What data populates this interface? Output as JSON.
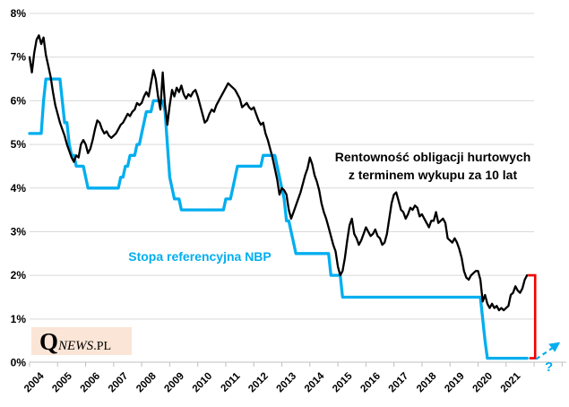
{
  "chart_data": {
    "type": "line",
    "title": "",
    "x_unit": "month",
    "x_start": "2004-01",
    "x_end": "2021-10",
    "x_tick_labels": [
      "2004",
      "2005",
      "2006",
      "2007",
      "2008",
      "2009",
      "2010",
      "2011",
      "2012",
      "2013",
      "2014",
      "2015",
      "2016",
      "2017",
      "2018",
      "2019",
      "2020",
      "2021"
    ],
    "y_tick_labels": [
      "8%",
      "7%",
      "6%",
      "5%",
      "4%",
      "3%",
      "2%",
      "1%",
      "0%"
    ],
    "ylim": [
      0,
      8
    ],
    "xlim_years": [
      2004,
      2022
    ],
    "grid": "horizontal",
    "legend_position": "none (inline annotations)",
    "series": [
      {
        "name": "Rentowność obligacji hurtowych z terminem wykupu za 10 lat",
        "color": "#000000",
        "values": [
          7.0,
          6.65,
          7.1,
          7.4,
          7.5,
          7.3,
          7.45,
          7.05,
          6.8,
          6.55,
          6.2,
          5.9,
          5.7,
          5.5,
          5.35,
          5.2,
          5.0,
          4.85,
          4.7,
          4.6,
          4.75,
          4.7,
          5.0,
          5.1,
          5.0,
          4.8,
          4.9,
          5.1,
          5.35,
          5.55,
          5.5,
          5.35,
          5.25,
          5.3,
          5.2,
          5.15,
          5.2,
          5.25,
          5.35,
          5.45,
          5.5,
          5.6,
          5.7,
          5.65,
          5.75,
          5.8,
          5.95,
          5.9,
          5.95,
          6.1,
          6.2,
          6.1,
          6.4,
          6.7,
          6.5,
          6.1,
          5.8,
          6.65,
          5.9,
          5.45,
          5.9,
          6.25,
          6.1,
          6.3,
          6.2,
          6.35,
          6.15,
          6.05,
          6.15,
          6.1,
          6.2,
          6.25,
          6.1,
          5.9,
          5.7,
          5.5,
          5.55,
          5.7,
          5.8,
          5.75,
          5.9,
          6.0,
          6.1,
          6.2,
          6.3,
          6.4,
          6.35,
          6.3,
          6.25,
          6.15,
          6.05,
          5.85,
          5.9,
          5.95,
          5.85,
          5.8,
          5.85,
          5.7,
          5.55,
          5.45,
          5.5,
          5.25,
          5.1,
          4.9,
          4.7,
          4.45,
          4.2,
          3.85,
          4.0,
          3.95,
          3.85,
          3.5,
          3.3,
          3.45,
          3.6,
          3.75,
          3.9,
          4.1,
          4.3,
          4.45,
          4.7,
          4.55,
          4.3,
          4.15,
          3.95,
          3.65,
          3.45,
          3.3,
          3.1,
          2.9,
          2.7,
          2.55,
          2.2,
          2.0,
          2.1,
          2.4,
          2.8,
          3.15,
          3.3,
          2.95,
          2.85,
          2.7,
          2.8,
          2.95,
          3.1,
          3.0,
          2.9,
          2.95,
          3.05,
          2.9,
          2.85,
          2.7,
          2.75,
          2.95,
          3.3,
          3.65,
          3.85,
          3.9,
          3.7,
          3.5,
          3.45,
          3.3,
          3.4,
          3.55,
          3.5,
          3.6,
          3.55,
          3.35,
          3.4,
          3.3,
          3.2,
          3.1,
          3.25,
          3.25,
          3.45,
          3.2,
          3.25,
          3.3,
          3.2,
          2.85,
          2.8,
          2.75,
          2.85,
          2.75,
          2.6,
          2.4,
          2.1,
          1.95,
          1.9,
          2.0,
          2.05,
          2.1,
          2.1,
          1.9,
          1.4,
          1.55,
          1.35,
          1.25,
          1.35,
          1.25,
          1.3,
          1.2,
          1.25,
          1.2,
          1.25,
          1.3,
          1.55,
          1.6,
          1.75,
          1.65,
          1.6,
          1.7,
          1.9,
          2.0
        ]
      },
      {
        "name": "Stopa referencyjna NBP",
        "color": "#00AEEF",
        "values": [
          5.25,
          5.25,
          5.25,
          5.25,
          5.25,
          5.25,
          6.0,
          6.5,
          6.5,
          6.5,
          6.5,
          6.5,
          6.5,
          6.5,
          6.0,
          5.5,
          5.5,
          5.0,
          4.75,
          4.75,
          4.5,
          4.5,
          4.5,
          4.5,
          4.25,
          4.0,
          4.0,
          4.0,
          4.0,
          4.0,
          4.0,
          4.0,
          4.0,
          4.0,
          4.0,
          4.0,
          4.0,
          4.0,
          4.0,
          4.25,
          4.25,
          4.5,
          4.5,
          4.75,
          4.75,
          4.75,
          5.0,
          5.0,
          5.25,
          5.5,
          5.75,
          5.75,
          5.75,
          6.0,
          6.0,
          6.0,
          6.0,
          6.0,
          5.75,
          5.0,
          4.25,
          4.0,
          3.75,
          3.75,
          3.75,
          3.5,
          3.5,
          3.5,
          3.5,
          3.5,
          3.5,
          3.5,
          3.5,
          3.5,
          3.5,
          3.5,
          3.5,
          3.5,
          3.5,
          3.5,
          3.5,
          3.5,
          3.5,
          3.5,
          3.75,
          3.75,
          3.75,
          4.0,
          4.25,
          4.5,
          4.5,
          4.5,
          4.5,
          4.5,
          4.5,
          4.5,
          4.5,
          4.5,
          4.5,
          4.5,
          4.75,
          4.75,
          4.75,
          4.75,
          4.75,
          4.75,
          4.5,
          4.25,
          4.0,
          3.75,
          3.25,
          3.25,
          3.0,
          2.75,
          2.5,
          2.5,
          2.5,
          2.5,
          2.5,
          2.5,
          2.5,
          2.5,
          2.5,
          2.5,
          2.5,
          2.5,
          2.5,
          2.5,
          2.5,
          2.0,
          2.0,
          2.0,
          2.0,
          2.0,
          1.5,
          1.5,
          1.5,
          1.5,
          1.5,
          1.5,
          1.5,
          1.5,
          1.5,
          1.5,
          1.5,
          1.5,
          1.5,
          1.5,
          1.5,
          1.5,
          1.5,
          1.5,
          1.5,
          1.5,
          1.5,
          1.5,
          1.5,
          1.5,
          1.5,
          1.5,
          1.5,
          1.5,
          1.5,
          1.5,
          1.5,
          1.5,
          1.5,
          1.5,
          1.5,
          1.5,
          1.5,
          1.5,
          1.5,
          1.5,
          1.5,
          1.5,
          1.5,
          1.5,
          1.5,
          1.5,
          1.5,
          1.5,
          1.5,
          1.5,
          1.5,
          1.5,
          1.5,
          1.5,
          1.5,
          1.5,
          1.5,
          1.5,
          1.5,
          1.5,
          1.0,
          0.5,
          0.1,
          0.1,
          0.1,
          0.1,
          0.1,
          0.1,
          0.1,
          0.1,
          0.1,
          0.1,
          0.1,
          0.1,
          0.1,
          0.1,
          0.1,
          0.1,
          0.1,
          0.1
        ]
      }
    ]
  },
  "annotations": {
    "bond_label_line1": "Rentowność obligacji hurtowych",
    "bond_label_line2": "z terminem wykupu za 10 lat",
    "rate_label": "Stopa referencyjna NBP",
    "question_mark": "?"
  },
  "logo": {
    "q": "Q",
    "news": "NEWS",
    "pl": ".PL"
  },
  "colors": {
    "bond_line": "#000000",
    "rate_line": "#00AEEF",
    "bracket": "#EF0000",
    "arrow": "#00AEEF",
    "grid": "#D9D9D9",
    "axis": "#BFBFBF",
    "logo_bg": "#FBE5D6",
    "text": "#000000"
  }
}
